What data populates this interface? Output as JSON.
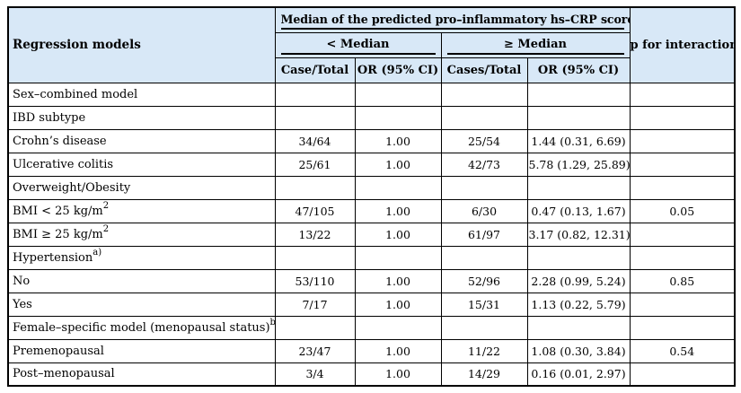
{
  "table": {
    "header": {
      "row_label_col": "Regression models",
      "spanner": "Median of the predicted pro–inflammatory hs–CRP score",
      "group_lt": "< Median",
      "group_ge": "≥ Median",
      "sub_cols": [
        "Case/Total",
        "OR (95% CI)",
        "Cases/Total",
        "OR (95% CI)"
      ],
      "p_col": "p for interaction"
    },
    "rows": [
      {
        "label": "Sex–combined model",
        "sup": "",
        "case_total_lt": "",
        "or_lt": "",
        "cases_total_ge": "",
        "or_ge": "",
        "p": ""
      },
      {
        "label": "IBD subtype",
        "sup": "",
        "case_total_lt": "",
        "or_lt": "",
        "cases_total_ge": "",
        "or_ge": "",
        "p": ""
      },
      {
        "label": "Crohn’s disease",
        "sup": "",
        "case_total_lt": "34/64",
        "or_lt": "1.00",
        "cases_total_ge": "25/54",
        "or_ge": "1.44 (0.31, 6.69)",
        "p": ""
      },
      {
        "label": "Ulcerative colitis",
        "sup": "",
        "case_total_lt": "25/61",
        "or_lt": "1.00",
        "cases_total_ge": "42/73",
        "or_ge": "5.78 (1.29, 25.89)",
        "p": ""
      },
      {
        "label": "Overweight/Obesity",
        "sup": "",
        "case_total_lt": "",
        "or_lt": "",
        "cases_total_ge": "",
        "or_ge": "",
        "p": ""
      },
      {
        "label": "BMI < 25 kg/m",
        "sup": "2",
        "case_total_lt": "47/105",
        "or_lt": "1.00",
        "cases_total_ge": "6/30",
        "or_ge": "0.47 (0.13, 1.67)",
        "p": "0.05"
      },
      {
        "label": "BMI ≥ 25 kg/m",
        "sup": "2",
        "case_total_lt": "13/22",
        "or_lt": "1.00",
        "cases_total_ge": "61/97",
        "or_ge": "3.17 (0.82, 12.31)",
        "p": ""
      },
      {
        "label": "Hypertension",
        "sup": "a)",
        "case_total_lt": "",
        "or_lt": "",
        "cases_total_ge": "",
        "or_ge": "",
        "p": ""
      },
      {
        "label": "No",
        "sup": "",
        "case_total_lt": "53/110",
        "or_lt": "1.00",
        "cases_total_ge": "52/96",
        "or_ge": "2.28 (0.99, 5.24)",
        "p": "0.85"
      },
      {
        "label": "Yes",
        "sup": "",
        "case_total_lt": "7/17",
        "or_lt": "1.00",
        "cases_total_ge": "15/31",
        "or_ge": "1.13 (0.22, 5.79)",
        "p": ""
      },
      {
        "label": "Female–specific model (menopausal status)",
        "sup": "b)",
        "case_total_lt": "",
        "or_lt": "",
        "cases_total_ge": "",
        "or_ge": "",
        "p": ""
      },
      {
        "label": "Premenopausal",
        "sup": "",
        "case_total_lt": "23/47",
        "or_lt": "1.00",
        "cases_total_ge": "11/22",
        "or_ge": "1.08 (0.30, 3.84)",
        "p": "0.54"
      },
      {
        "label": "Post–menopausal",
        "sup": "",
        "case_total_lt": "3/4",
        "or_lt": "1.00",
        "cases_total_ge": "14/29",
        "or_ge": "0.16 (0.01, 2.97)",
        "p": ""
      }
    ],
    "colors": {
      "header_bg": "#d8e8f7",
      "border": "#000000"
    }
  }
}
